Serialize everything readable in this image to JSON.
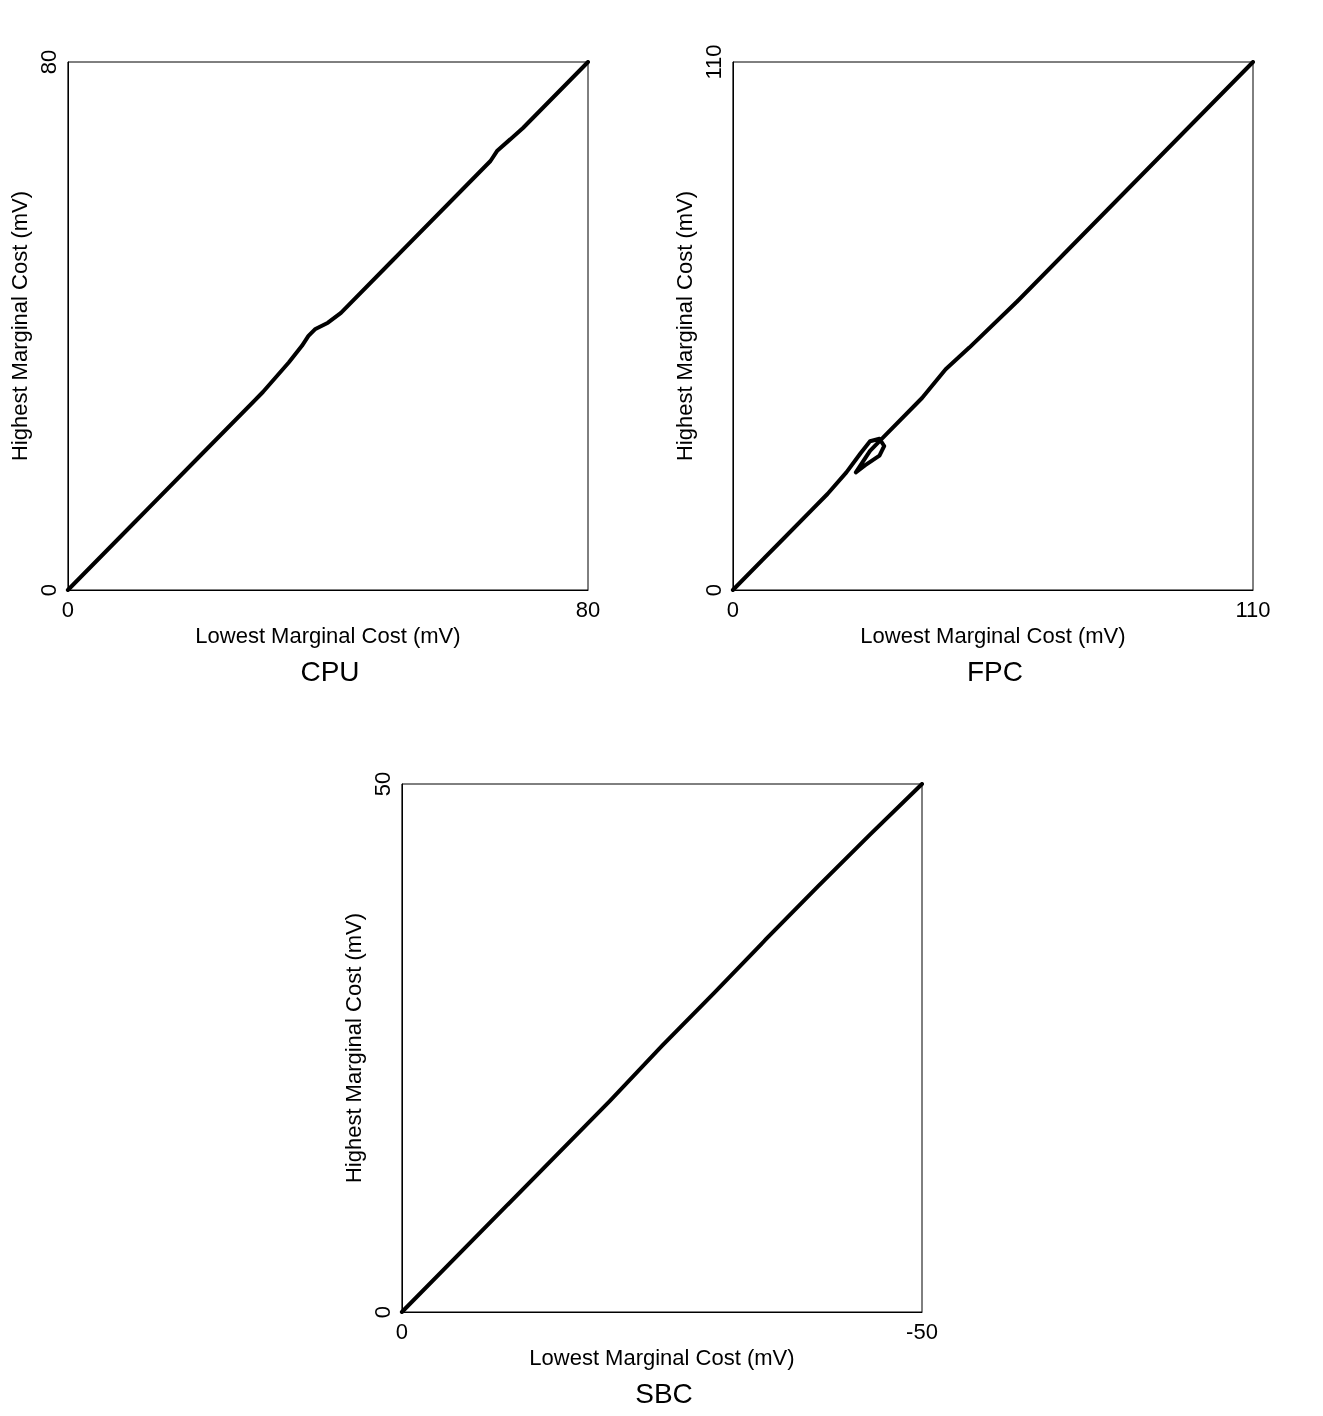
{
  "chart_data": [
    {
      "type": "line",
      "title": "CPU",
      "xlabel": "Lowest Marginal Cost (mV)",
      "ylabel": "Highest Marginal Cost (mV)",
      "xlim": [
        0,
        80
      ],
      "ylim": [
        0,
        80
      ],
      "xticks": [
        0,
        80
      ],
      "yticks": [
        0,
        80
      ],
      "grid": false,
      "marker": "none",
      "line_style": "solid",
      "series": [
        {
          "color": "#000000",
          "x": [
            0,
            10,
            20,
            30,
            34,
            36,
            37,
            38,
            39,
            40,
            42,
            50,
            60,
            65,
            66,
            70,
            80
          ],
          "values": [
            0,
            10,
            20,
            30,
            34.5,
            37,
            38.5,
            39.5,
            40,
            40.5,
            42,
            50,
            60,
            65,
            66.5,
            70,
            80
          ]
        }
      ]
    },
    {
      "type": "line",
      "title": "FPC",
      "xlabel": "Lowest Marginal Cost (mV)",
      "ylabel": "Highest Marginal Cost (mV)",
      "xlim": [
        0,
        110
      ],
      "ylim": [
        0,
        110
      ],
      "xticks": [
        0,
        110
      ],
      "yticks": [
        0,
        110
      ],
      "grid": false,
      "marker": "none",
      "line_style": "solid",
      "series": [
        {
          "color": "#000000",
          "x": [
            0,
            10,
            20,
            24,
            27,
            29,
            31,
            32,
            31,
            28,
            26,
            29,
            32,
            40,
            45,
            50,
            60,
            70,
            80,
            90,
            100,
            110
          ],
          "values": [
            0,
            10,
            20,
            24.5,
            28.5,
            31,
            31.5,
            30,
            28,
            26,
            24.5,
            29,
            32,
            40,
            46,
            50.5,
            60,
            70,
            80,
            90,
            100,
            110
          ]
        }
      ]
    },
    {
      "type": "line",
      "title": "SBC",
      "xlabel": "Lowest Marginal Cost (mV)",
      "ylabel": "Highest Marginal Cost (mV)",
      "xlim": [
        0,
        -50
      ],
      "ylim": [
        0,
        50
      ],
      "xticks": [
        0,
        -50
      ],
      "yticks": [
        0,
        50
      ],
      "grid": false,
      "marker": "none",
      "line_style": "solid",
      "series": [
        {
          "color": "#000000",
          "x": [
            0,
            -10,
            -20,
            -25,
            -30,
            -35,
            -40,
            -45,
            -50
          ],
          "values": [
            0,
            10,
            20,
            25.2,
            30.2,
            35.3,
            40.3,
            45.2,
            50
          ]
        }
      ]
    }
  ]
}
